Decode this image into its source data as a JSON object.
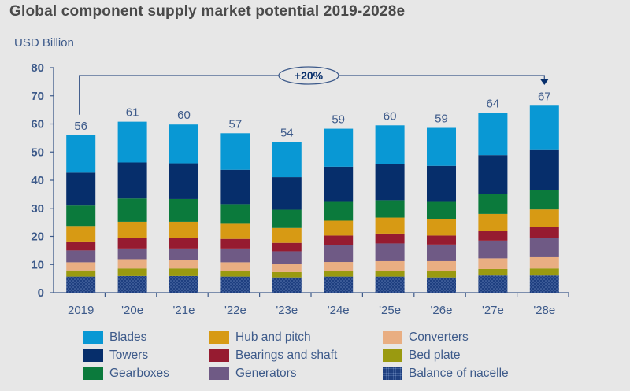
{
  "chart_data": {
    "type": "bar",
    "stacked": true,
    "title": "Global component supply market potential 2019-2028e",
    "ylabel": "USD Billion",
    "xlabel": "",
    "ylim": [
      0,
      80
    ],
    "yticks": [
      0,
      10,
      20,
      30,
      40,
      50,
      60,
      70,
      80
    ],
    "grid": false,
    "categories": [
      "2019",
      "'20e",
      "'21e",
      "'22e",
      "'23e",
      "'24e",
      "'25e",
      "'26e",
      "'27e",
      "'28e"
    ],
    "totals": [
      56,
      61,
      60,
      57,
      54,
      59,
      60,
      59,
      64,
      67
    ],
    "series": [
      {
        "name": "Balance of nacelle",
        "color": "#1e3f80",
        "pattern": "dotted",
        "values": [
          5.7,
          5.9,
          5.9,
          5.7,
          5.4,
          5.7,
          5.7,
          5.4,
          6.1,
          6.1
        ]
      },
      {
        "name": "Bed plate",
        "color": "#9a9a10",
        "values": [
          2.2,
          2.7,
          2.7,
          2.1,
          1.9,
          2.0,
          2.1,
          2.4,
          2.3,
          2.5
        ]
      },
      {
        "name": "Converters",
        "color": "#e9ae82",
        "values": [
          2.9,
          3.3,
          2.9,
          3.0,
          3.0,
          3.2,
          3.4,
          3.4,
          3.8,
          4.0
        ]
      },
      {
        "name": "Generators",
        "color": "#6f5a85",
        "values": [
          4.2,
          3.8,
          4.2,
          4.9,
          4.4,
          5.9,
          6.3,
          5.9,
          6.3,
          6.8
        ]
      },
      {
        "name": "Bearings and shaft",
        "color": "#961b30",
        "values": [
          3.2,
          3.7,
          3.7,
          3.4,
          3.0,
          3.5,
          3.5,
          3.2,
          3.5,
          3.9
        ]
      },
      {
        "name": "Hub and pitch",
        "color": "#d79a14",
        "values": [
          5.5,
          5.8,
          5.8,
          5.4,
          5.3,
          5.3,
          5.7,
          5.8,
          6.0,
          6.3
        ]
      },
      {
        "name": "Gearboxes",
        "color": "#0b7a3c",
        "values": [
          7.3,
          8.3,
          8.1,
          7.0,
          6.5,
          6.7,
          6.2,
          6.2,
          7.1,
          6.9
        ]
      },
      {
        "name": "Towers",
        "color": "#062e6b",
        "values": [
          11.7,
          12.8,
          12.7,
          12.2,
          11.6,
          12.5,
          12.9,
          12.8,
          13.8,
          14.2
        ]
      },
      {
        "name": "Blades",
        "color": "#0998d4",
        "values": [
          13.3,
          14.5,
          13.8,
          13.0,
          12.5,
          13.5,
          13.7,
          13.5,
          15.0,
          15.8
        ]
      }
    ],
    "annotation": {
      "text": "+20%",
      "from": "2019",
      "to": "'28e"
    },
    "legend": {
      "placement": "bottom",
      "columns": [
        [
          "Blades",
          "Towers",
          "Gearboxes"
        ],
        [
          "Hub and pitch",
          "Bearings and shaft",
          "Generators"
        ],
        [
          "Converters",
          "Bed plate",
          "Balance of nacelle"
        ]
      ]
    },
    "colors": {
      "axis": "#3d5a8a",
      "label": "#3d5a8a",
      "title": "#4a4a4a",
      "background": "#e7e7e7"
    }
  }
}
